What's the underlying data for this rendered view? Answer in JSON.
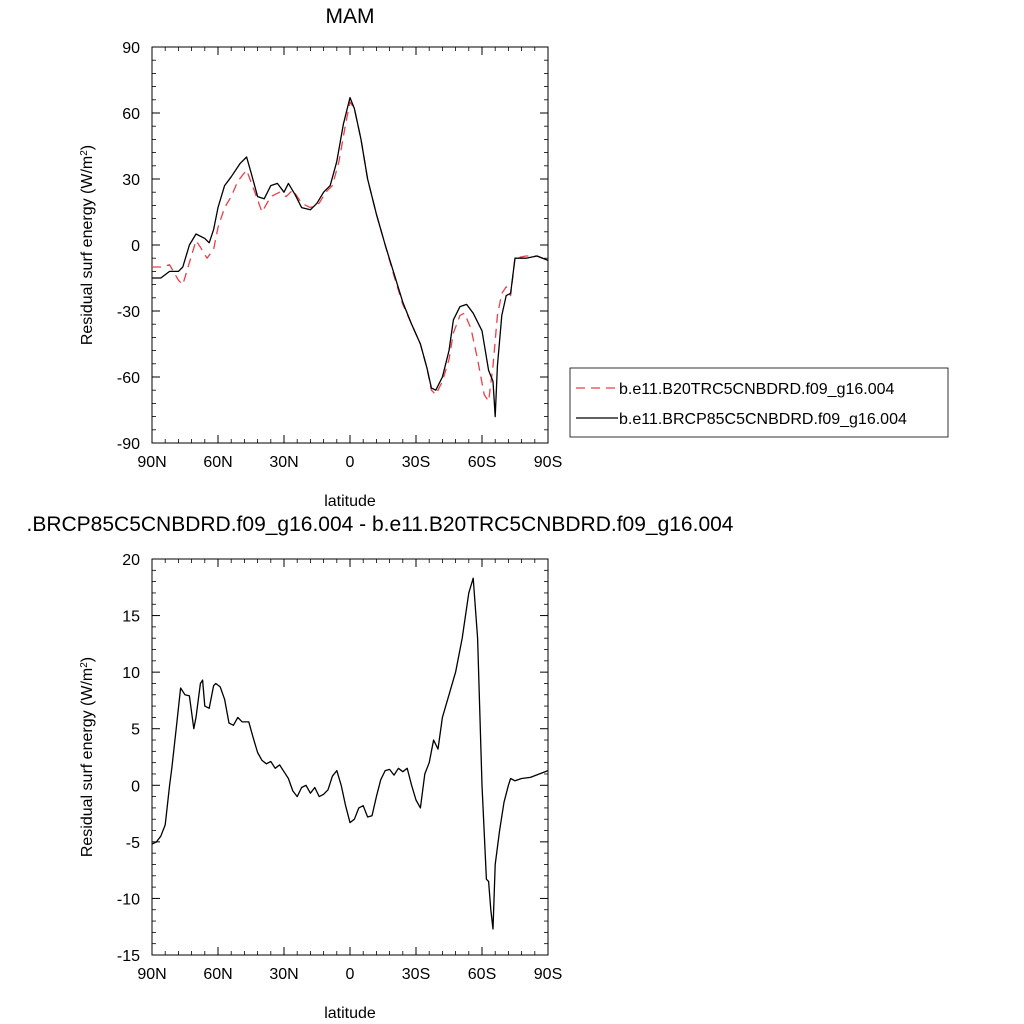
{
  "chart_data": [
    {
      "type": "line",
      "title": "MAM",
      "xlabel": "latitude",
      "ylabel": "Residual surf energy (W/m",
      "ylabel_sup": "2",
      "ylabel_close": ")",
      "xlim": [
        90,
        -90
      ],
      "ylim": [
        -90,
        90
      ],
      "x_ticks": [
        {
          "value": 90,
          "label": "90N"
        },
        {
          "value": 60,
          "label": "60N"
        },
        {
          "value": 30,
          "label": "30N"
        },
        {
          "value": 0,
          "label": "0"
        },
        {
          "value": -30,
          "label": "30S"
        },
        {
          "value": -60,
          "label": "60S"
        },
        {
          "value": -90,
          "label": "90S"
        }
      ],
      "y_ticks": [
        {
          "value": 90,
          "label": "90"
        },
        {
          "value": 60,
          "label": "60"
        },
        {
          "value": 30,
          "label": "30"
        },
        {
          "value": 0,
          "label": "0"
        },
        {
          "value": -30,
          "label": "-30"
        },
        {
          "value": -60,
          "label": "-60"
        },
        {
          "value": -90,
          "label": "-90"
        }
      ],
      "legend_position": "right",
      "series": [
        {
          "name": "b.e11.B20TRC5CNBDRD.f09_g16.004",
          "color": "#e8404a",
          "dash": "dashed",
          "points": [
            [
              90,
              -10
            ],
            [
              86,
              -10
            ],
            [
              82,
              -9
            ],
            [
              78,
              -16
            ],
            [
              76,
              -18
            ],
            [
              73,
              -8
            ],
            [
              70,
              2
            ],
            [
              68,
              -1
            ],
            [
              65,
              -6
            ],
            [
              62,
              -2
            ],
            [
              60,
              8
            ],
            [
              57,
              17
            ],
            [
              54,
              22
            ],
            [
              51,
              29
            ],
            [
              47,
              34
            ],
            [
              44,
              26
            ],
            [
              40,
              15
            ],
            [
              36,
              22
            ],
            [
              32,
              24
            ],
            [
              29,
              22
            ],
            [
              26,
              25
            ],
            [
              22,
              19
            ],
            [
              18,
              17
            ],
            [
              14,
              19
            ],
            [
              11,
              24
            ],
            [
              8,
              27
            ],
            [
              5,
              38
            ],
            [
              2,
              55
            ],
            [
              0,
              65
            ],
            [
              -2,
              62
            ],
            [
              -5,
              48
            ],
            [
              -8,
              30
            ],
            [
              -12,
              14
            ],
            [
              -16,
              0
            ],
            [
              -20,
              -14
            ],
            [
              -24,
              -27
            ],
            [
              -28,
              -36
            ],
            [
              -32,
              -45
            ],
            [
              -35,
              -56
            ],
            [
              -37,
              -66
            ],
            [
              -39,
              -68
            ],
            [
              -42,
              -62
            ],
            [
              -45,
              -52
            ],
            [
              -47,
              -40
            ],
            [
              -50,
              -32
            ],
            [
              -52,
              -31
            ],
            [
              -55,
              -38
            ],
            [
              -58,
              -52
            ],
            [
              -61,
              -68
            ],
            [
              -63,
              -71
            ],
            [
              -65,
              -55
            ],
            [
              -67,
              -32
            ],
            [
              -69,
              -22
            ],
            [
              -71,
              -19
            ],
            [
              -73,
              -23
            ],
            [
              -75,
              -6
            ],
            [
              -80,
              -5
            ],
            [
              -85,
              -5
            ],
            [
              -90,
              -7
            ]
          ]
        },
        {
          "name": "b.e11.BRCP85C5CNBDRD.f09_g16.004",
          "color": "#000000",
          "dash": "solid",
          "points": [
            [
              90,
              -15
            ],
            [
              86,
              -15
            ],
            [
              82,
              -12
            ],
            [
              78,
              -12
            ],
            [
              76,
              -10
            ],
            [
              73,
              0
            ],
            [
              70,
              5
            ],
            [
              66,
              3
            ],
            [
              64,
              1
            ],
            [
              62,
              7
            ],
            [
              60,
              17
            ],
            [
              57,
              27
            ],
            [
              54,
              31
            ],
            [
              50,
              37
            ],
            [
              47,
              40
            ],
            [
              45,
              33
            ],
            [
              42,
              22
            ],
            [
              39,
              21
            ],
            [
              36,
              27
            ],
            [
              33,
              28
            ],
            [
              30,
              24
            ],
            [
              28,
              28
            ],
            [
              25,
              23
            ],
            [
              22,
              17
            ],
            [
              18,
              16
            ],
            [
              15,
              19
            ],
            [
              12,
              24
            ],
            [
              9,
              27
            ],
            [
              6,
              38
            ],
            [
              3,
              55
            ],
            [
              0,
              67
            ],
            [
              -2,
              62
            ],
            [
              -5,
              48
            ],
            [
              -8,
              30
            ],
            [
              -12,
              14
            ],
            [
              -16,
              0
            ],
            [
              -20,
              -13
            ],
            [
              -24,
              -26
            ],
            [
              -28,
              -36
            ],
            [
              -32,
              -45
            ],
            [
              -35,
              -56
            ],
            [
              -37,
              -65
            ],
            [
              -39,
              -66
            ],
            [
              -42,
              -60
            ],
            [
              -45,
              -48
            ],
            [
              -47,
              -34
            ],
            [
              -50,
              -28
            ],
            [
              -53,
              -27
            ],
            [
              -56,
              -31
            ],
            [
              -60,
              -39
            ],
            [
              -63,
              -57
            ],
            [
              -65,
              -62
            ],
            [
              -66,
              -78
            ],
            [
              -67,
              -55
            ],
            [
              -69,
              -32
            ],
            [
              -71,
              -23
            ],
            [
              -73,
              -22
            ],
            [
              -75,
              -6
            ],
            [
              -80,
              -6
            ],
            [
              -85,
              -5
            ],
            [
              -90,
              -7
            ]
          ]
        }
      ]
    },
    {
      "type": "line",
      "title": ".BRCP85C5CNBDRD.f09_g16.004 - b.e11.B20TRC5CNBDRD.f09_g16.004",
      "xlabel": "latitude",
      "ylabel": "Residual surf energy (W/m",
      "ylabel_sup": "2",
      "ylabel_close": ")",
      "xlim": [
        90,
        -90
      ],
      "ylim": [
        -15,
        20
      ],
      "x_ticks": [
        {
          "value": 90,
          "label": "90N"
        },
        {
          "value": 60,
          "label": "60N"
        },
        {
          "value": 30,
          "label": "30N"
        },
        {
          "value": 0,
          "label": "0"
        },
        {
          "value": -30,
          "label": "30S"
        },
        {
          "value": -60,
          "label": "60S"
        },
        {
          "value": -90,
          "label": "90S"
        }
      ],
      "y_ticks": [
        {
          "value": 20,
          "label": "20"
        },
        {
          "value": 15,
          "label": "15"
        },
        {
          "value": 10,
          "label": "10"
        },
        {
          "value": 5,
          "label": "5"
        },
        {
          "value": 0,
          "label": "0"
        },
        {
          "value": -5,
          "label": "-5"
        },
        {
          "value": -10,
          "label": "-10"
        },
        {
          "value": -15,
          "label": "-15"
        }
      ],
      "series": [
        {
          "color": "#000000",
          "dash": "solid",
          "points": [
            [
              90,
              -5.2
            ],
            [
              88,
              -5
            ],
            [
              86,
              -4.5
            ],
            [
              84,
              -3.5
            ],
            [
              82,
              0
            ],
            [
              81,
              1.5
            ],
            [
              79,
              5
            ],
            [
              77,
              8.6
            ],
            [
              75,
              8
            ],
            [
              73,
              7.9
            ],
            [
              71,
              5
            ],
            [
              70,
              6
            ],
            [
              68,
              9
            ],
            [
              67,
              9.3
            ],
            [
              66,
              7
            ],
            [
              64,
              6.8
            ],
            [
              62,
              8.8
            ],
            [
              61,
              9
            ],
            [
              59,
              8.7
            ],
            [
              57,
              7.6
            ],
            [
              55,
              5.5
            ],
            [
              53,
              5.3
            ],
            [
              51,
              6
            ],
            [
              49,
              5.6
            ],
            [
              46,
              5.6
            ],
            [
              44,
              4.2
            ],
            [
              42,
              2.9
            ],
            [
              40,
              2.2
            ],
            [
              38,
              1.9
            ],
            [
              36,
              2.1
            ],
            [
              34,
              1.5
            ],
            [
              32,
              1.8
            ],
            [
              30,
              1.2
            ],
            [
              28,
              0.6
            ],
            [
              26,
              -0.5
            ],
            [
              24,
              -1
            ],
            [
              22,
              -0.2
            ],
            [
              20,
              0
            ],
            [
              18,
              -0.7
            ],
            [
              16,
              -0.2
            ],
            [
              14,
              -1
            ],
            [
              12,
              -0.8
            ],
            [
              10,
              -0.4
            ],
            [
              8,
              0.8
            ],
            [
              6,
              1.3
            ],
            [
              4,
              0
            ],
            [
              2,
              -1.8
            ],
            [
              0,
              -3.3
            ],
            [
              -2,
              -3
            ],
            [
              -4,
              -2
            ],
            [
              -6,
              -1.8
            ],
            [
              -8,
              -2.8
            ],
            [
              -10,
              -2.7
            ],
            [
              -12,
              -1
            ],
            [
              -14,
              0.5
            ],
            [
              -16,
              1.3
            ],
            [
              -18,
              1.4
            ],
            [
              -20,
              0.9
            ],
            [
              -22,
              1.5
            ],
            [
              -24,
              1.2
            ],
            [
              -26,
              1.5
            ],
            [
              -28,
              0
            ],
            [
              -30,
              -1.3
            ],
            [
              -32,
              -2
            ],
            [
              -34,
              1
            ],
            [
              -36,
              2
            ],
            [
              -38,
              4
            ],
            [
              -40,
              3.2
            ],
            [
              -42,
              6
            ],
            [
              -45,
              8
            ],
            [
              -48,
              10
            ],
            [
              -51,
              13
            ],
            [
              -54,
              17
            ],
            [
              -56,
              18.3
            ],
            [
              -58,
              13
            ],
            [
              -60,
              0
            ],
            [
              -62,
              -8.3
            ],
            [
              -63,
              -8.5
            ],
            [
              -64,
              -11
            ],
            [
              -65,
              -12.7
            ],
            [
              -66,
              -7
            ],
            [
              -68,
              -4
            ],
            [
              -70,
              -1.5
            ],
            [
              -72,
              0
            ],
            [
              -73,
              0.6
            ],
            [
              -75,
              0.4
            ],
            [
              -78,
              0.6
            ],
            [
              -82,
              0.7
            ],
            [
              -86,
              1
            ],
            [
              -90,
              1.3
            ]
          ]
        }
      ]
    }
  ]
}
